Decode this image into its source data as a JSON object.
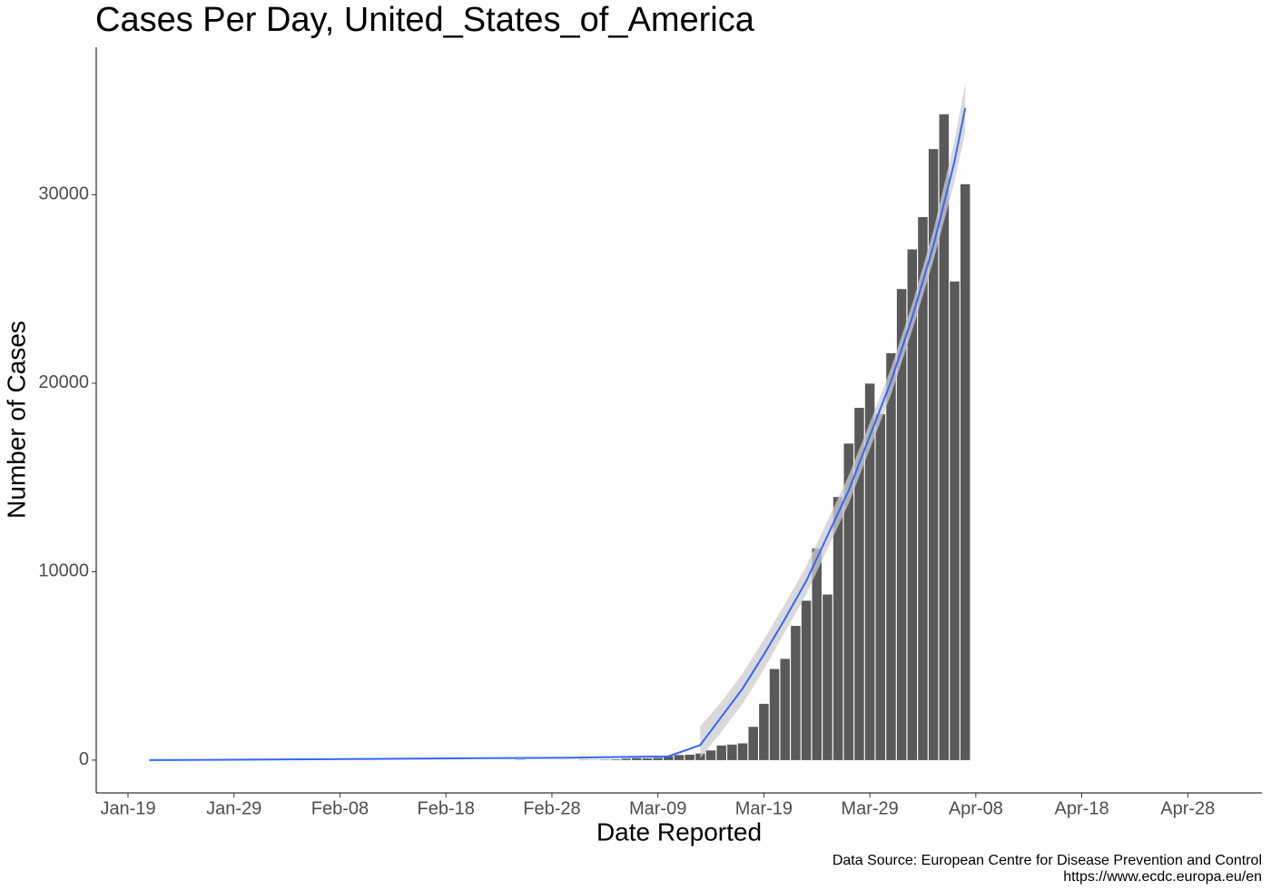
{
  "chart_data": {
    "type": "bar",
    "title": "Cases Per Day, United_States_of_America",
    "x_label": "Date Reported",
    "y_label": "Number of Cases",
    "caption": [
      "Data Source: European Centre for Disease Prevention and Control",
      "https://www.ecdc.europa.eu/en"
    ],
    "color": "#595959",
    "x": [
      "Jan-21",
      "Jan-22",
      "Jan-23",
      "Jan-24",
      "Jan-25",
      "Jan-26",
      "Jan-27",
      "Jan-28",
      "Jan-29",
      "Jan-30",
      "Jan-31",
      "Feb-01",
      "Feb-02",
      "Feb-03",
      "Feb-04",
      "Feb-05",
      "Feb-06",
      "Feb-07",
      "Feb-08",
      "Feb-09",
      "Feb-10",
      "Feb-11",
      "Feb-12",
      "Feb-13",
      "Feb-14",
      "Feb-15",
      "Feb-16",
      "Feb-17",
      "Feb-18",
      "Feb-19",
      "Feb-20",
      "Feb-21",
      "Feb-22",
      "Feb-23",
      "Feb-24",
      "Feb-25",
      "Feb-26",
      "Feb-27",
      "Feb-28",
      "Feb-29",
      "Mar-01",
      "Mar-02",
      "Mar-03",
      "Mar-04",
      "Mar-05",
      "Mar-06",
      "Mar-07",
      "Mar-08",
      "Mar-09",
      "Mar-10",
      "Mar-11",
      "Mar-12",
      "Mar-13",
      "Mar-14",
      "Mar-15",
      "Mar-16",
      "Mar-17",
      "Mar-18",
      "Mar-19",
      "Mar-20",
      "Mar-21",
      "Mar-22",
      "Mar-23",
      "Mar-24",
      "Mar-25",
      "Mar-26",
      "Mar-27",
      "Mar-28",
      "Mar-29",
      "Mar-30",
      "Mar-31",
      "Apr-01",
      "Apr-02",
      "Apr-03",
      "Apr-04",
      "Apr-05",
      "Apr-06",
      "Apr-07"
    ],
    "values": [
      1,
      0,
      0,
      1,
      1,
      0,
      3,
      0,
      0,
      0,
      1,
      1,
      0,
      3,
      0,
      0,
      1,
      0,
      0,
      0,
      0,
      1,
      0,
      1,
      0,
      0,
      0,
      0,
      0,
      0,
      0,
      0,
      0,
      0,
      0,
      18,
      0,
      0,
      0,
      6,
      3,
      20,
      14,
      22,
      34,
      74,
      105,
      95,
      121,
      200,
      271,
      287,
      351,
      511,
      777,
      823,
      887,
      1766,
      2988,
      4835,
      5374,
      7123,
      8459,
      11236,
      8789,
      13963,
      16797,
      18695,
      19979,
      18360,
      21595,
      24998,
      27103,
      28819,
      32425,
      34272,
      25398,
      30561
    ],
    "xlim": [
      "Jan-16",
      "May-05"
    ],
    "xticks": [
      "Jan-19",
      "Jan-29",
      "Feb-08",
      "Feb-18",
      "Feb-28",
      "Mar-09",
      "Mar-19",
      "Mar-29",
      "Apr-08",
      "Apr-18",
      "Apr-28"
    ],
    "ylim": [
      -1740,
      37830
    ],
    "yticks": [
      0,
      10000,
      20000,
      30000
    ],
    "smooth": {
      "color": "#3366ff",
      "band_color": "#cccccc",
      "x": [
        "Jan-21",
        "Feb-01",
        "Feb-15",
        "Mar-01",
        "Mar-10",
        "Mar-13",
        "Mar-15",
        "Mar-17",
        "Mar-19",
        "Mar-21",
        "Mar-23",
        "Mar-25",
        "Mar-27",
        "Mar-29",
        "Mar-31",
        "Apr-02",
        "Apr-04",
        "Apr-06",
        "Apr-07"
      ],
      "values": [
        0,
        30,
        80,
        130,
        200,
        800,
        2300,
        3800,
        5600,
        7500,
        9500,
        11900,
        14300,
        17200,
        20100,
        23500,
        27300,
        31800,
        34600
      ],
      "lower": [
        null,
        null,
        null,
        null,
        null,
        100,
        1500,
        3000,
        4800,
        6800,
        8800,
        11200,
        13600,
        16500,
        19400,
        22800,
        26500,
        30700,
        33300
      ],
      "upper": [
        null,
        null,
        null,
        null,
        null,
        1800,
        3100,
        4600,
        6400,
        8300,
        10300,
        12700,
        15100,
        17900,
        20800,
        24200,
        28100,
        32900,
        35900
      ]
    }
  }
}
